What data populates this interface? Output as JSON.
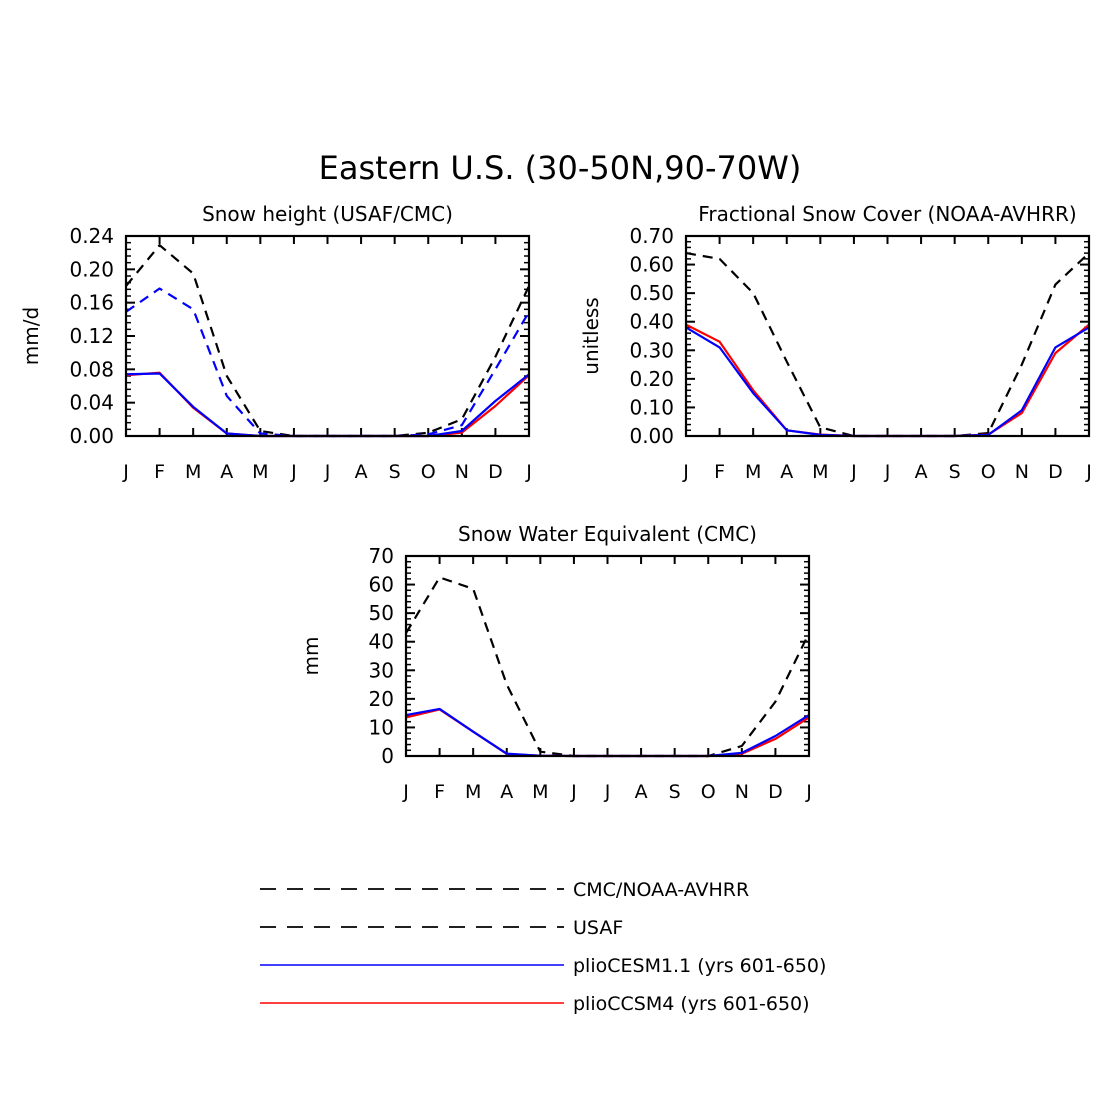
{
  "figure_title": "Eastern U.S. (30-50N,90-70W)",
  "legend": [
    {
      "label": "CMC/NOAA-AVHRR",
      "color": "#000000",
      "dash": true
    },
    {
      "label": "USAF",
      "color": "#000000",
      "dash": true
    },
    {
      "label": "plioCESM1.1 (yrs 601-650)",
      "color": "#0000ff",
      "dash": false
    },
    {
      "label": "plioCCSM4 (yrs 601-650)",
      "color": "#ff0000",
      "dash": false
    }
  ],
  "chart_data": [
    {
      "type": "line",
      "title": "Snow height (USAF/CMC)",
      "xlabel": "",
      "ylabel": "mm/d",
      "categories": [
        "J",
        "F",
        "M",
        "A",
        "M",
        "J",
        "J",
        "A",
        "S",
        "O",
        "N",
        "D",
        "J"
      ],
      "ylim": [
        0,
        0.24
      ],
      "yticks": [
        "0.00",
        "0.04",
        "0.08",
        "0.12",
        "0.16",
        "0.20",
        "0.24"
      ],
      "series": [
        {
          "name": "CMC",
          "color": "#000000",
          "dash": true,
          "values": [
            0.18,
            0.229,
            0.195,
            0.072,
            0.006,
            0.0,
            0.0,
            0.0,
            0.0,
            0.004,
            0.02,
            0.095,
            0.18
          ]
        },
        {
          "name": "USAF",
          "color": "#0000ff",
          "dash": true,
          "values": [
            0.149,
            0.177,
            0.152,
            0.048,
            0.003,
            0.0,
            0.0,
            0.0,
            0.0,
            0.002,
            0.013,
            0.08,
            0.149
          ]
        },
        {
          "name": "plioCCSM4 (yrs 601-650)",
          "color": "#ff0000",
          "dash": false,
          "values": [
            0.073,
            0.076,
            0.034,
            0.003,
            0.0,
            0.0,
            0.0,
            0.0,
            0.0,
            0.0,
            0.004,
            0.036,
            0.073
          ]
        },
        {
          "name": "plioCESM1.1 (yrs 601-650)",
          "color": "#0000ff",
          "dash": false,
          "values": [
            0.074,
            0.075,
            0.035,
            0.003,
            0.0,
            0.0,
            0.0,
            0.0,
            0.0,
            0.0,
            0.006,
            0.042,
            0.074
          ]
        }
      ]
    },
    {
      "type": "line",
      "title": "Fractional Snow Cover (NOAA-AVHRR)",
      "xlabel": "",
      "ylabel": "unitless",
      "categories": [
        "J",
        "F",
        "M",
        "A",
        "M",
        "J",
        "J",
        "A",
        "S",
        "O",
        "N",
        "D",
        "J"
      ],
      "ylim": [
        0,
        0.7
      ],
      "yticks": [
        "0.00",
        "0.10",
        "0.20",
        "0.30",
        "0.40",
        "0.50",
        "0.60",
        "0.70"
      ],
      "series": [
        {
          "name": "NOAA-AVHRR",
          "color": "#000000",
          "dash": true,
          "values": [
            0.64,
            0.62,
            0.5,
            0.26,
            0.03,
            0.0,
            0.0,
            0.0,
            0.0,
            0.01,
            0.25,
            0.53,
            0.64
          ]
        },
        {
          "name": "plioCCSM4 (yrs 601-650)",
          "color": "#ff0000",
          "dash": false,
          "values": [
            0.39,
            0.33,
            0.16,
            0.02,
            0.005,
            0.0,
            0.0,
            0.0,
            0.0,
            0.005,
            0.08,
            0.29,
            0.39
          ]
        },
        {
          "name": "plioCESM1.1 (yrs 601-650)",
          "color": "#0000ff",
          "dash": false,
          "values": [
            0.38,
            0.31,
            0.15,
            0.02,
            0.004,
            0.0,
            0.0,
            0.0,
            0.0,
            0.004,
            0.09,
            0.31,
            0.38
          ]
        }
      ]
    },
    {
      "type": "line",
      "title": "Snow Water Equivalent (CMC)",
      "xlabel": "",
      "ylabel": "mm",
      "categories": [
        "J",
        "F",
        "M",
        "A",
        "M",
        "J",
        "J",
        "A",
        "S",
        "O",
        "N",
        "D",
        "J"
      ],
      "ylim": [
        0,
        70
      ],
      "yticks": [
        "0",
        "10",
        "20",
        "30",
        "40",
        "50",
        "60",
        "70"
      ],
      "series": [
        {
          "name": "CMC",
          "color": "#000000",
          "dash": true,
          "values": [
            43,
            62.5,
            58.5,
            25,
            1.5,
            0,
            0,
            0,
            0,
            0,
            3.5,
            19,
            43
          ]
        },
        {
          "name": "plioCCSM4 (yrs 601-650)",
          "color": "#ff0000",
          "dash": false,
          "values": [
            13.5,
            16.3,
            8.5,
            0.7,
            0.1,
            0,
            0,
            0,
            0,
            0,
            0.8,
            6,
            13.5
          ]
        },
        {
          "name": "plioCESM1.1 (yrs 601-650)",
          "color": "#0000ff",
          "dash": false,
          "values": [
            14.3,
            16.5,
            8.5,
            0.8,
            0.1,
            0,
            0,
            0,
            0,
            0,
            1.1,
            7,
            14.3
          ]
        }
      ]
    }
  ]
}
